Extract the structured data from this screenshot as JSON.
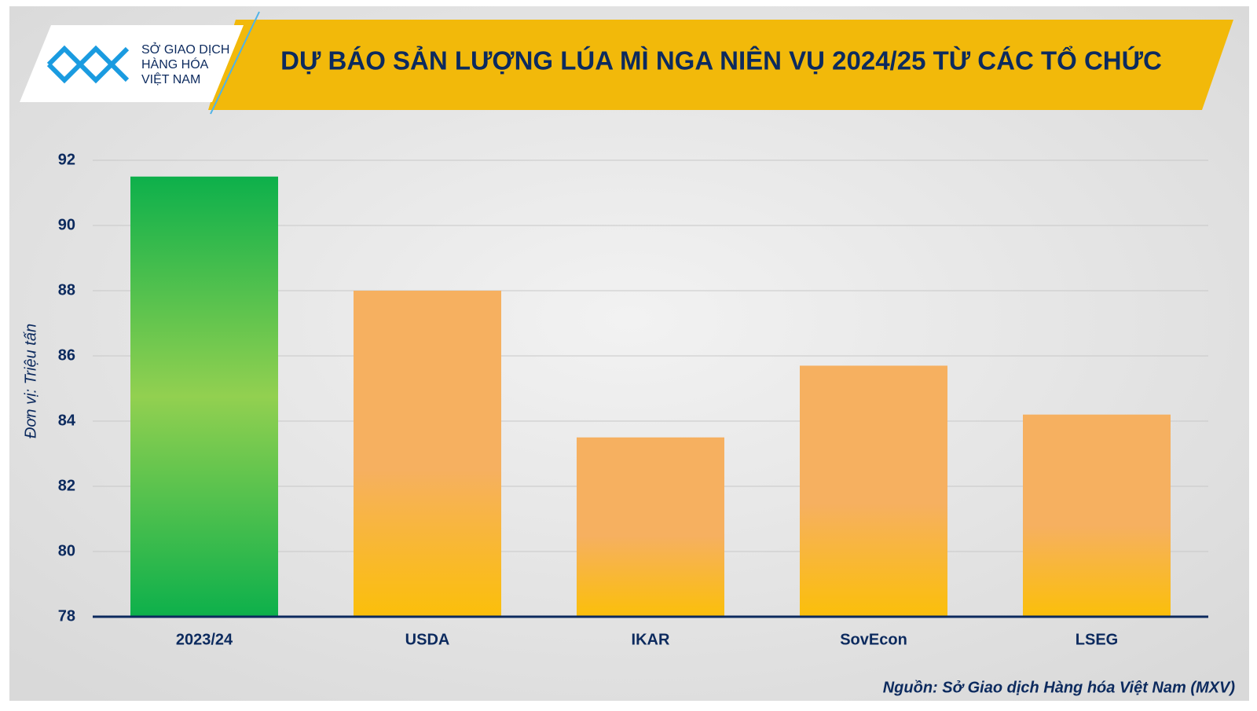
{
  "logo": {
    "lines": [
      "SỞ GIAO DỊCH",
      "HÀNG HÓA",
      "VIỆT NAM"
    ]
  },
  "chart_data": {
    "type": "bar",
    "title": "DỰ BÁO SẢN LƯỢNG LÚA MÌ NGA NIÊN VỤ 2024/25 TỪ CÁC TỔ CHỨC",
    "y_label": "Đơn vị: Triệu tấn",
    "categories": [
      "2023/24",
      "USDA",
      "IKAR",
      "SovEcon",
      "LSEG"
    ],
    "values": [
      91.5,
      88,
      83.5,
      85.7,
      84.2
    ],
    "colors": [
      [
        "#92d050",
        "#0db04b"
      ],
      [
        "#f6b060",
        "#fbbf0a"
      ],
      [
        "#f6b060",
        "#fbbf0a"
      ],
      [
        "#f6b060",
        "#fbbf0a"
      ],
      [
        "#f6b060",
        "#fbbf0a"
      ]
    ],
    "ylim": [
      78,
      92
    ],
    "yticks": [
      78,
      80,
      82,
      84,
      86,
      88,
      90,
      92
    ],
    "grid": true,
    "source": "Nguồn: Sở Giao dịch Hàng hóa Việt Nam (MXV)"
  }
}
